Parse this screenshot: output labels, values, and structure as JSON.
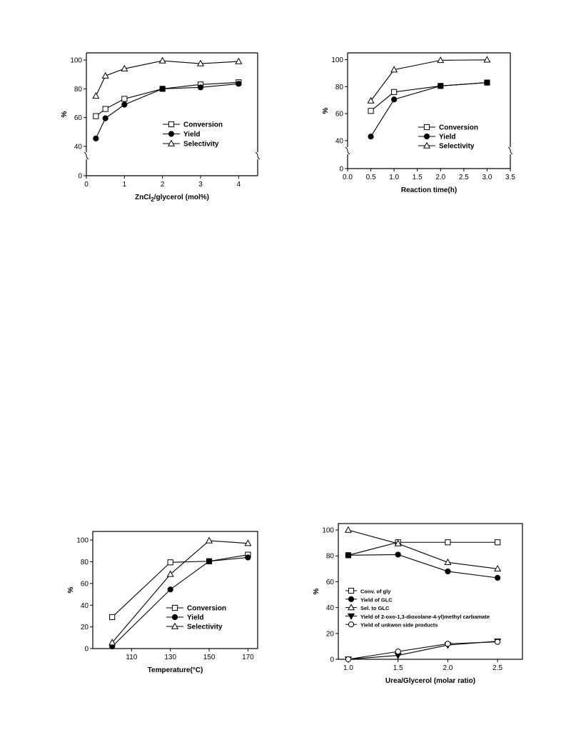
{
  "chart_data": [
    {
      "type": "line",
      "xlabel": "ZnCl2/glycerol (mol%)",
      "ylabel": "%",
      "xlim": [
        0,
        4.5
      ],
      "ylim": [
        0,
        105
      ],
      "y_axis_break": true,
      "x_ticks": [
        "0",
        "1",
        "2",
        "3",
        "4"
      ],
      "y_ticks": [
        "0",
        "40",
        "60",
        "80",
        "100"
      ],
      "legend_position": "center-right",
      "series": [
        {
          "name": "Conversion",
          "marker": "open-square",
          "x": [
            0.25,
            0.5,
            1,
            2,
            3,
            4
          ],
          "y": [
            61,
            66,
            73,
            80,
            83,
            84.5
          ]
        },
        {
          "name": "Yield",
          "marker": "filled-circle",
          "x": [
            0.25,
            0.5,
            1,
            2,
            3,
            4
          ],
          "y": [
            45.5,
            59.5,
            69,
            80,
            81,
            83.5
          ]
        },
        {
          "name": "Selectivity",
          "marker": "open-triangle",
          "x": [
            0.25,
            0.5,
            1,
            2,
            3,
            4
          ],
          "y": [
            75,
            89,
            94,
            99.5,
            97.5,
            99
          ]
        }
      ]
    },
    {
      "type": "line",
      "xlabel": "Reaction time(h)",
      "ylabel": "%",
      "xlim": [
        0,
        3.5
      ],
      "ylim": [
        0,
        105
      ],
      "y_axis_break": true,
      "x_ticks": [
        "0.0",
        "0.5",
        "1.0",
        "1.5",
        "2.0",
        "2.5",
        "3.0",
        "3.5"
      ],
      "y_ticks": [
        "0",
        "40",
        "60",
        "80",
        "100"
      ],
      "legend_position": "center-right",
      "series": [
        {
          "name": "Conversion",
          "marker": "open-square",
          "x": [
            0.5,
            1,
            2,
            3
          ],
          "y": [
            62,
            76,
            80.5,
            83
          ]
        },
        {
          "name": "Yield",
          "marker": "filled-circle",
          "x": [
            0.5,
            1,
            2,
            3
          ],
          "y": [
            43,
            70.5,
            80.5,
            83
          ]
        },
        {
          "name": "Selectivity",
          "marker": "open-triangle",
          "x": [
            0.5,
            1,
            2,
            3
          ],
          "y": [
            69.5,
            92.5,
            99.5,
            99.8
          ]
        }
      ]
    },
    {
      "type": "line",
      "xlabel": "Temperature(°C)",
      "ylabel": "%",
      "xlim": [
        90,
        175
      ],
      "ylim": [
        0,
        105
      ],
      "y_axis_break": false,
      "x_ticks": [
        "110",
        "130",
        "150",
        "170"
      ],
      "y_ticks": [
        "0",
        "20",
        "40",
        "60",
        "80",
        "100"
      ],
      "legend_position": "bottom-right",
      "series": [
        {
          "name": "Conversion",
          "marker": "open-square",
          "x": [
            100,
            130,
            150,
            170
          ],
          "y": [
            29,
            79.5,
            80.5,
            86.5
          ]
        },
        {
          "name": "Yield",
          "marker": "filled-circle",
          "x": [
            100,
            130,
            150,
            170
          ],
          "y": [
            2,
            54.5,
            80.5,
            84
          ]
        },
        {
          "name": "Selectivity",
          "marker": "open-triangle",
          "x": [
            100,
            130,
            150,
            170
          ],
          "y": [
            5.5,
            68.5,
            99.5,
            97
          ]
        }
      ]
    },
    {
      "type": "line",
      "xlabel": "Urea/Glycerol (molar ratio)",
      "ylabel": "%",
      "xlim": [
        0.9,
        2.75
      ],
      "ylim": [
        0,
        105
      ],
      "y_axis_break": false,
      "x_ticks": [
        "1.0",
        "1.5",
        "2.0",
        "2.5"
      ],
      "y_ticks": [
        "0",
        "20",
        "40",
        "60",
        "80",
        "100"
      ],
      "legend_position": "center-left",
      "series": [
        {
          "name": "Conv. of gly",
          "marker": "open-square",
          "x": [
            1,
            1.5,
            2,
            2.5
          ],
          "y": [
            80.5,
            90.5,
            90.5,
            90.5
          ]
        },
        {
          "name": "Yield of GLC",
          "marker": "filled-circle",
          "x": [
            1,
            1.5,
            2,
            2.5
          ],
          "y": [
            80.5,
            81,
            68,
            63
          ]
        },
        {
          "name": "Sel. to GLC",
          "marker": "open-triangle",
          "x": [
            1,
            1.5,
            2,
            2.5
          ],
          "y": [
            100,
            89.5,
            75,
            70
          ]
        },
        {
          "name": "Yield of 2-oxo-1,3-dioxolane-4-yl)methyl carbamate",
          "marker": "filled-down-triangle",
          "x": [
            1,
            1.5,
            2,
            2.5
          ],
          "y": [
            0,
            3,
            11,
            14
          ]
        },
        {
          "name": "Yield of unkwon side products",
          "marker": "open-circle",
          "x": [
            1,
            1.5,
            2,
            2.5
          ],
          "y": [
            0,
            6,
            12,
            13.5
          ]
        }
      ]
    }
  ]
}
